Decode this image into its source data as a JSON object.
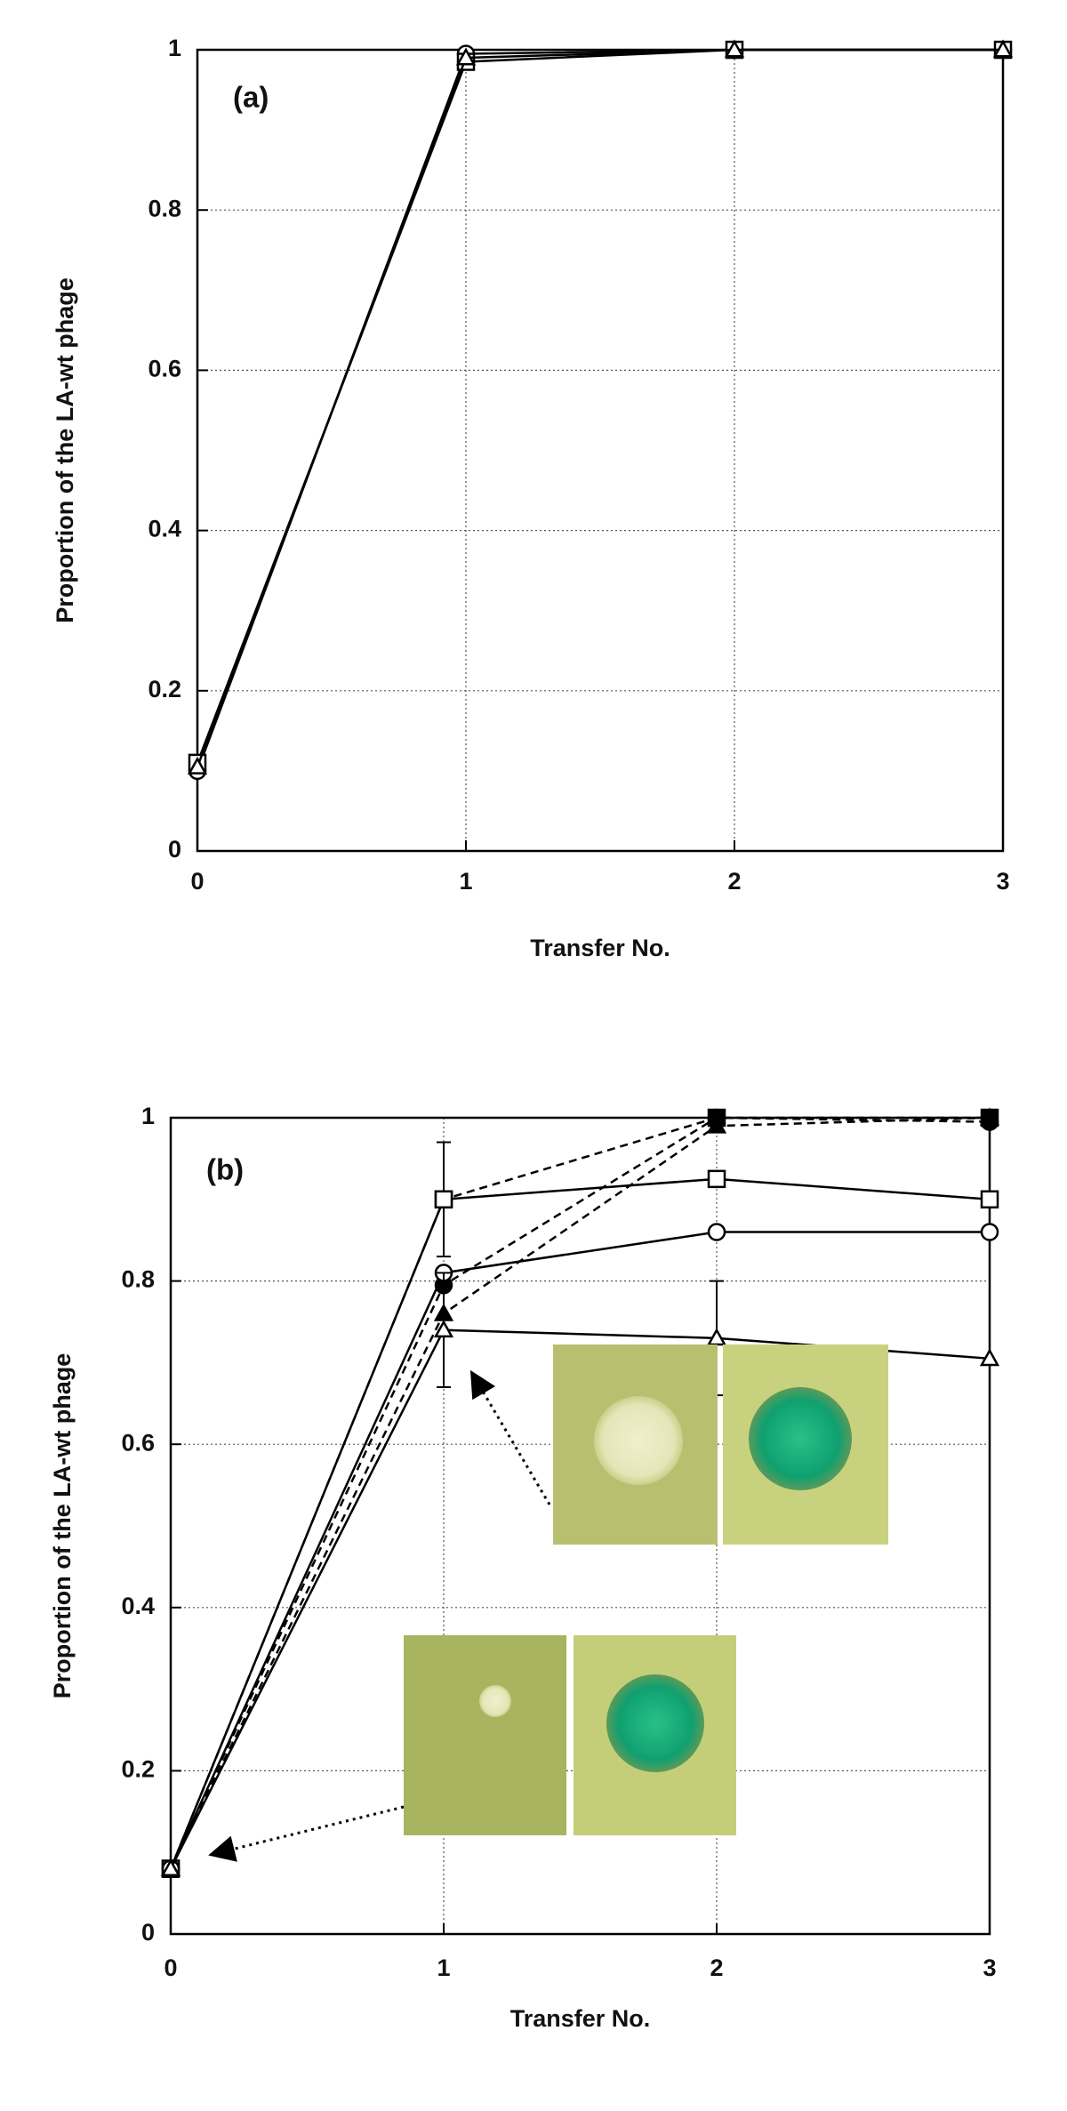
{
  "chart_data": [
    {
      "type": "line",
      "annotation": "(a)",
      "xlabel": "Transfer No.",
      "ylabel": "Proportion of the LA-wt phage",
      "x": [
        0,
        1,
        2,
        3
      ],
      "xlim": [
        0,
        3
      ],
      "xticks": [
        0,
        1,
        2,
        3
      ],
      "ylim": [
        0,
        1
      ],
      "yticks": [
        0,
        0.2,
        0.4,
        0.6,
        0.8,
        1
      ],
      "grid": true,
      "series": [
        {
          "color": "#000000",
          "marker": "circle",
          "filled": false,
          "dashed": false,
          "values": [
            0.1,
            0.995,
            1,
            1
          ]
        },
        {
          "color": "#000000",
          "marker": "square",
          "filled": false,
          "dashed": false,
          "values": [
            0.11,
            0.985,
            1,
            1
          ]
        },
        {
          "color": "#000000",
          "marker": "triangle",
          "filled": false,
          "dashed": false,
          "values": [
            0.105,
            0.99,
            1,
            1
          ]
        }
      ]
    },
    {
      "type": "line",
      "annotation": "(b)",
      "xlabel": "Transfer No.",
      "ylabel": "Proportion of the LA-wt phage",
      "x": [
        0,
        1,
        2,
        3
      ],
      "xlim": [
        0,
        3
      ],
      "xticks": [
        0,
        1,
        2,
        3
      ],
      "ylim": [
        0,
        1
      ],
      "yticks": [
        0,
        0.2,
        0.4,
        0.6,
        0.8,
        1
      ],
      "grid": true,
      "series": [
        {
          "color": "#000000",
          "marker": "square",
          "filled": true,
          "dashed": true,
          "values": [
            0.08,
            0.9,
            1,
            1
          ],
          "errors": [
            null,
            0.07,
            null,
            null
          ]
        },
        {
          "color": "#000000",
          "marker": "circle",
          "filled": true,
          "dashed": true,
          "values": [
            0.08,
            0.795,
            1,
            0.995
          ]
        },
        {
          "color": "#000000",
          "marker": "triangle",
          "filled": true,
          "dashed": true,
          "values": [
            0.08,
            0.76,
            0.99,
            1
          ]
        },
        {
          "color": "#000000",
          "marker": "square",
          "filled": false,
          "dashed": false,
          "values": [
            0.08,
            0.9,
            0.925,
            0.9
          ]
        },
        {
          "color": "#000000",
          "marker": "circle",
          "filled": false,
          "dashed": false,
          "values": [
            0.08,
            0.81,
            0.86,
            0.86
          ]
        },
        {
          "color": "#000000",
          "marker": "triangle",
          "filled": false,
          "dashed": false,
          "values": [
            0.08,
            0.74,
            0.73,
            0.705
          ],
          "errors": [
            null,
            0.07,
            0.07,
            null
          ]
        }
      ]
    }
  ]
}
